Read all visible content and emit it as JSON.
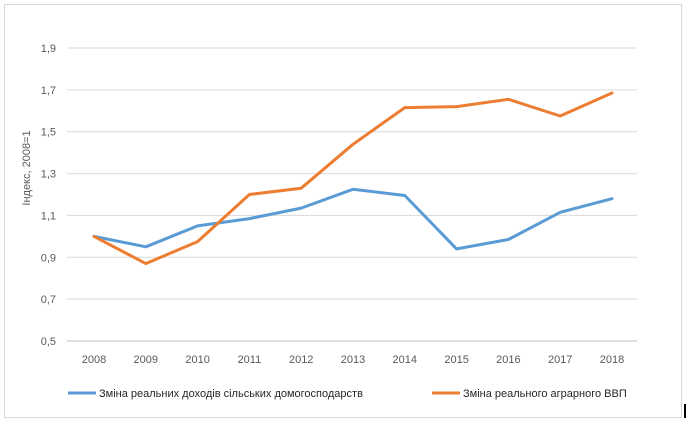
{
  "chart_data": {
    "type": "line",
    "title": "",
    "xlabel": "",
    "ylabel": "Індекс, 2008=1",
    "categories": [
      "2008",
      "2009",
      "2010",
      "2011",
      "2012",
      "2013",
      "2014",
      "2015",
      "2016",
      "2017",
      "2018"
    ],
    "ylim": [
      0.5,
      1.9
    ],
    "yticks": [
      "0,5",
      "0,7",
      "0,9",
      "1,1",
      "1,3",
      "1,5",
      "1,7",
      "1,9"
    ],
    "ytick_values": [
      0.5,
      0.7,
      0.9,
      1.1,
      1.3,
      1.5,
      1.7,
      1.9
    ],
    "grid": true,
    "legend_position": "bottom",
    "series": [
      {
        "name": "Зміна реальних доходів сільських домогосподарств",
        "color": "#5b9bd5",
        "values": [
          1.0,
          0.95,
          1.05,
          1.085,
          1.135,
          1.225,
          1.195,
          0.94,
          0.985,
          1.115,
          1.18
        ]
      },
      {
        "name": "Зміна реального аграрного ВВП",
        "color": "#ed7d31",
        "values": [
          1.0,
          0.87,
          0.975,
          1.2,
          1.23,
          1.44,
          1.615,
          1.62,
          1.655,
          1.575,
          1.685
        ]
      }
    ]
  }
}
